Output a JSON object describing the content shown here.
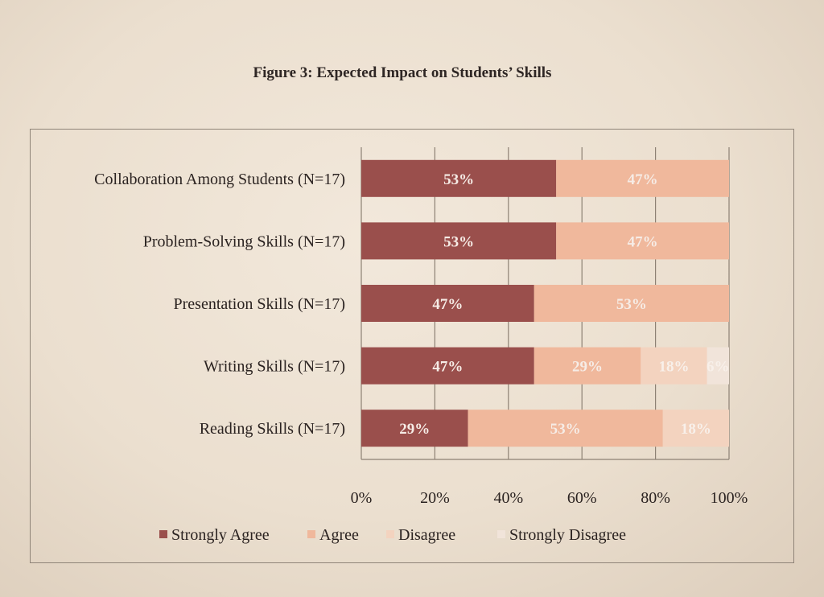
{
  "chart_data": {
    "type": "bar",
    "orientation": "horizontal",
    "stacked": true,
    "title": "Figure 3:  Expected Impact on Students’ Skills",
    "categories": [
      "Collaboration Among Students (N=17)",
      "Problem-Solving Skills (N=17)",
      "Presentation Skills (N=17)",
      "Writing Skills (N=17)",
      "Reading Skills (N=17)"
    ],
    "series": [
      {
        "name": "Strongly Agree",
        "color": "#9a4f4c",
        "label_color": "#f6ece6",
        "values": [
          53,
          53,
          47,
          47,
          29
        ]
      },
      {
        "name": "Agree",
        "color": "#f0b89c",
        "label_color": "#f6ece6",
        "values": [
          47,
          47,
          53,
          29,
          53
        ]
      },
      {
        "name": "Disagree",
        "color": "#f3d3bf",
        "label_color": "#f8f0ea",
        "values": [
          0,
          0,
          0,
          18,
          18
        ]
      },
      {
        "name": "Strongly Disagree",
        "color": "#f1e4da",
        "label_color": "#f8f0ea",
        "values": [
          0,
          0,
          0,
          6,
          0
        ]
      }
    ],
    "data_labels": [
      [
        "53%",
        "47%",
        "",
        ""
      ],
      [
        "53%",
        "47%",
        "",
        ""
      ],
      [
        "47%",
        "53%",
        "",
        ""
      ],
      [
        "47%",
        "29%",
        "18%",
        "6%"
      ],
      [
        "29%",
        "53%",
        "18%",
        ""
      ]
    ],
    "xlim": [
      0,
      100
    ],
    "xticks": [
      "0%",
      "20%",
      "40%",
      "60%",
      "80%",
      "100%"
    ],
    "grid": true,
    "legend_position": "bottom"
  }
}
